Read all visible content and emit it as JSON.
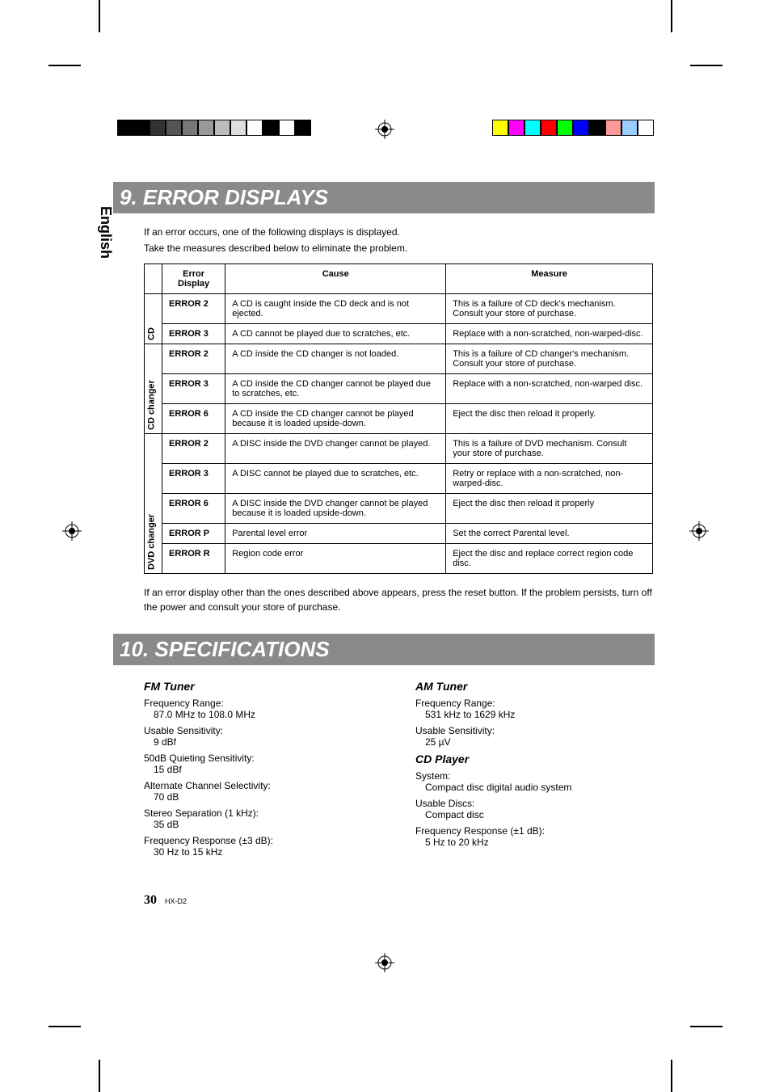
{
  "sideTab": "English",
  "heading1": "9. ERROR DISPLAYS",
  "intro1": "If an error occurs, one of the following displays is displayed.",
  "intro2": "Take the measures described below to eliminate the problem.",
  "tableHeaders": {
    "c1": "Error Display",
    "c2": "Cause",
    "c3": "Measure"
  },
  "groups": [
    {
      "label": "CD",
      "rows": [
        {
          "code": "ERROR 2",
          "cause": "A CD is caught inside the CD deck and is not ejected.",
          "measure": "This is a failure of CD deck's mechanism. Consult your store of purchase."
        },
        {
          "code": "ERROR 3",
          "cause": "A CD cannot be played due to scratches, etc.",
          "measure": "Replace with a non-scratched, non-warped-disc."
        }
      ]
    },
    {
      "label": "CD changer",
      "rows": [
        {
          "code": "ERROR 2",
          "cause": "A CD inside the CD changer is not loaded.",
          "measure": "This is a failure of CD changer's mechanism. Consult your store of purchase."
        },
        {
          "code": "ERROR 3",
          "cause": "A CD inside the CD changer cannot be played due to scratches, etc.",
          "measure": "Replace with a non-scratched, non-warped disc."
        },
        {
          "code": "ERROR 6",
          "cause": "A CD inside the CD changer cannot be played because it is loaded upside-down.",
          "measure": "Eject the disc then reload it properly."
        }
      ]
    },
    {
      "label": "DVD changer",
      "rows": [
        {
          "code": "ERROR 2",
          "cause": "A DISC inside the DVD changer cannot be played.",
          "measure": "This is a failure of DVD mechanism. Consult your store of purchase."
        },
        {
          "code": "ERROR 3",
          "cause": "A DISC cannot be played due to scratches, etc.",
          "measure": "Retry or replace with a non-scratched, non-warped-disc."
        },
        {
          "code": "ERROR 6",
          "cause": "A DISC inside the DVD changer cannot be played because it is loaded upside-down.",
          "measure": "Eject the disc then reload it properly"
        },
        {
          "code": "ERROR P",
          "cause": "Parental level error",
          "measure": "Set the correct Parental level."
        },
        {
          "code": "ERROR R",
          "cause": "Region code error",
          "measure": "Eject the disc and replace correct region code disc."
        }
      ]
    }
  ],
  "note": "If an error display other than the ones described above appears, press the reset button. If the problem persists, turn off the power and consult your store of purchase.",
  "heading2": "10. SPECIFICATIONS",
  "specs": {
    "fm": {
      "title": "FM Tuner",
      "items": [
        {
          "k": "Frequency Range:",
          "v": "87.0 MHz to 108.0 MHz"
        },
        {
          "k": "Usable Sensitivity:",
          "v": "9 dBf"
        },
        {
          "k": "50dB Quieting Sensitivity:",
          "v": "15 dBf"
        },
        {
          "k": "Alternate Channel Selectivity:",
          "v": "70 dB"
        },
        {
          "k": "Stereo Separation (1 kHz):",
          "v": "35 dB"
        },
        {
          "k": "Frequency Response (±3 dB):",
          "v": "30 Hz to 15 kHz"
        }
      ]
    },
    "am": {
      "title": "AM Tuner",
      "items": [
        {
          "k": "Frequency Range:",
          "v": "531 kHz to 1629 kHz"
        },
        {
          "k": "Usable Sensitivity:",
          "v": "25 µV"
        }
      ]
    },
    "cd": {
      "title": "CD Player",
      "items": [
        {
          "k": "System:",
          "v": "Compact disc digital audio system"
        },
        {
          "k": "Usable Discs:",
          "v": "Compact disc"
        },
        {
          "k": "Frequency Response (±1 dB):",
          "v": "5 Hz to 20 kHz"
        }
      ]
    }
  },
  "pageNumber": "30",
  "model": "HX-D2",
  "colorBarsLeft": [
    "#000000",
    "#000000",
    "#333333",
    "#555555",
    "#777777",
    "#999999",
    "#bbbbbb",
    "#dddddd",
    "#ffffff",
    "#000000",
    "#ffffff",
    "#000000"
  ],
  "colorBarsRight": [
    "#ffff00",
    "#ff00ff",
    "#00ffff",
    "#ff0000",
    "#00ff00",
    "#0000ff",
    "#000000",
    "#ff9999",
    "#99ccff",
    "#ffffff"
  ]
}
